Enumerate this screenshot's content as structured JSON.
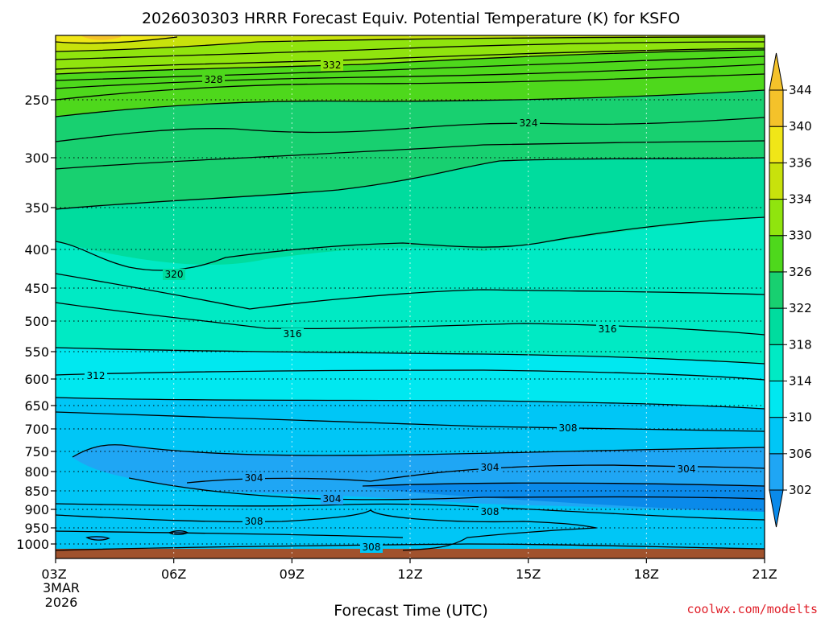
{
  "chart_data": {
    "type": "contour",
    "title": "2026030303 HRRR Forecast Equiv. Potential Temperature (K) for KSFO",
    "xlabel": "Forecast Time (UTC)",
    "ylabel": "",
    "x_ticks": [
      "03Z",
      "06Z",
      "09Z",
      "12Z",
      "15Z",
      "18Z",
      "21Z"
    ],
    "x_start_date": [
      "3MAR",
      "2026"
    ],
    "y_ticks": [
      250,
      300,
      350,
      400,
      450,
      500,
      550,
      600,
      650,
      700,
      750,
      800,
      850,
      900,
      950,
      1000
    ],
    "colorbar": {
      "levels": [
        302,
        306,
        310,
        314,
        318,
        322,
        326,
        330,
        334,
        336,
        340,
        344
      ],
      "colors": [
        "#0a8aea",
        "#1fa6f4",
        "#00c6f6",
        "#00e8f0",
        "#00eac4",
        "#00dc9e",
        "#18d070",
        "#4ed81c",
        "#90e40e",
        "#c8e20c",
        "#f0e618",
        "#f4c22a"
      ]
    },
    "contour_labels": [
      {
        "text": "332",
        "time": "09Z+1.5h",
        "pressure": 214
      },
      {
        "text": "328",
        "time": "05Z",
        "pressure": 228
      },
      {
        "text": "324",
        "time": "15Z",
        "pressure": 273
      },
      {
        "text": "320",
        "time": "06Z",
        "pressure": 420
      },
      {
        "text": "316",
        "time": "09Z",
        "pressure": 513
      },
      {
        "text": "316",
        "time": "17Z",
        "pressure": 510
      },
      {
        "text": "312",
        "time": "04Z",
        "pressure": 592
      },
      {
        "text": "308",
        "time": "16Z",
        "pressure": 700
      },
      {
        "text": "304",
        "time": "15Z",
        "pressure": 788
      },
      {
        "text": "304",
        "time": "19Z",
        "pressure": 795
      },
      {
        "text": "304",
        "time": "08Z",
        "pressure": 810
      },
      {
        "text": "304",
        "time": "10Z",
        "pressure": 858
      },
      {
        "text": "308",
        "time": "15Z",
        "pressure": 900
      },
      {
        "text": "308",
        "time": "08Z",
        "pressure": 942
      },
      {
        "text": "308",
        "time": "11Z",
        "pressure": 1005
      }
    ],
    "credit": "coolwx.com/modelts"
  }
}
